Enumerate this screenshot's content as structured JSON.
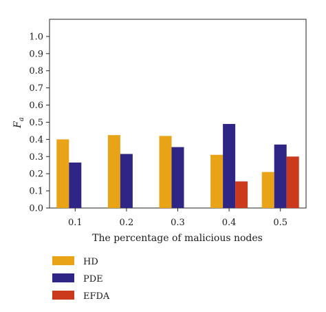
{
  "chart_data": {
    "type": "bar",
    "xlabel": "The percentage of malicious nodes",
    "ylabel": "Fa",
    "ylabel_main": "F",
    "ylabel_sub": "a",
    "categories": [
      "0.1",
      "0.2",
      "0.3",
      "0.4",
      "0.5"
    ],
    "yticks": [
      "0.0",
      "0.1",
      "0.2",
      "0.3",
      "0.4",
      "0.5",
      "0.6",
      "0.7",
      "0.8",
      "0.9",
      "1.0"
    ],
    "ylim": [
      0,
      1.1
    ],
    "grid": false,
    "legend_position": "bottom-left",
    "series": [
      {
        "name": "HD",
        "color": "#E8A317",
        "values": [
          0.4,
          0.425,
          0.42,
          0.31,
          0.21
        ]
      },
      {
        "name": "PDE",
        "color": "#2E2585",
        "values": [
          0.265,
          0.315,
          0.355,
          0.49,
          0.37
        ]
      },
      {
        "name": "EFDA",
        "color": "#CC3A1E",
        "values": [
          0.0,
          0.0,
          0.0,
          0.155,
          0.3
        ]
      }
    ]
  }
}
